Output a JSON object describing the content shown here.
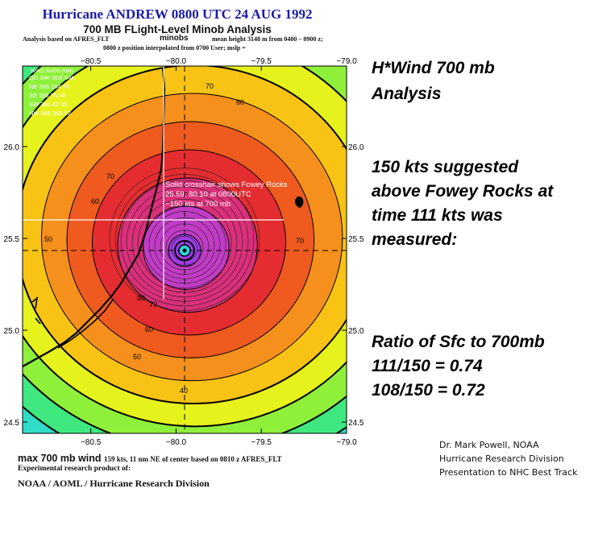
{
  "header": {
    "title": "Hurricane ANDREW 0800 UTC 24 AUG 1992",
    "subtitle": "700 MB FLight-Level Minob Analysis",
    "analysis_line": "Analysis based on AFRES_FLT",
    "minobs": "minobs",
    "mean_height": "mean height 3148 m from 0400 – 0900 z;",
    "position_line": "0800 z position interpolated from 0700 User; mslp ="
  },
  "notes": {
    "heading_1": "H*Wind 700 mb",
    "heading_2": "Analysis",
    "text_1": "150 kts suggested",
    "text_2": "above Fowey Rocks at",
    "text_3": "time 111 kts was",
    "text_4": "measured:",
    "ratio_1": "Ratio of Sfc to 700mb",
    "ratio_2": "111/150 = 0.74",
    "ratio_3": "108/150 = 0.72"
  },
  "credits": {
    "line_1": "Dr. Mark Powell, NOAA",
    "line_2": "Hurricane Research Division",
    "line_3": "Presentation to NHC Best Track"
  },
  "footer": {
    "max_label": "max 700 mb wind",
    "max_detail": "159 kts, 11 nm NE of center based on 0810 z AFRES_FLT",
    "experimental": "Experimental research product of:",
    "org": "NOAA / AOML / Hurricane Research Division"
  },
  "chart_data": {
    "type": "contour",
    "x_ticks": [
      "−80.5",
      "−80.0",
      "−79.5",
      "−79.0"
    ],
    "y_ticks": [
      "26.0",
      "25.5",
      "25.0",
      "24.5"
    ],
    "xlim": [
      -80.9,
      -79.0
    ],
    "ylim": [
      24.4,
      25.85
    ],
    "center": {
      "lon": -79.99,
      "lat": 25.44
    },
    "fowey_rocks": {
      "lon": -80.1,
      "lat": 25.59
    },
    "contour_labels": [
      {
        "text": "40",
        "lon": -79.82,
        "lat": 24.72
      },
      {
        "text": "50",
        "lon": -80.27,
        "lat": 24.9
      },
      {
        "text": "60",
        "lon": -80.3,
        "lat": 24.98
      },
      {
        "text": "70",
        "lon": -80.22,
        "lat": 25.14
      },
      {
        "text": "80",
        "lon": -80.23,
        "lat": 25.14
      },
      {
        "text": "50",
        "lon": -80.78,
        "lat": 25.52
      },
      {
        "text": "60",
        "lon": -80.47,
        "lat": 25.67
      },
      {
        "text": "70",
        "lon": -80.37,
        "lat": 25.8
      },
      {
        "text": "70",
        "lon": -79.83,
        "lat": 26.06
      },
      {
        "text": "70",
        "lon": -79.54,
        "lat": 25.5
      },
      {
        "text": "60",
        "lon": -79.66,
        "lat": 26.0
      }
    ],
    "wind_radii": {
      "header": "WIND RADII (NM)",
      "columns": "QD  34K  50K  64K",
      "rows": [
        "NE  366  154  70",
        "SE  366  75  46",
        "SW  366  42  30",
        "NW  366  366  52"
      ]
    },
    "annotation": {
      "line_1": "Solid crosshair shows Fowey Rocks",
      "line_2": "25.59, 80.10 at 0800UTC",
      "line_3": "~150 kts at 700 mb"
    },
    "color_bands": [
      "#0d9fe8",
      "#1bd0ee",
      "#2fdcc8",
      "#3ee87e",
      "#8ff03a",
      "#e6f21c",
      "#f8c314",
      "#f6901c",
      "#ef5a1e",
      "#e52c30",
      "#dc2f7a",
      "#c23bc6",
      "#9f3ae8"
    ]
  }
}
